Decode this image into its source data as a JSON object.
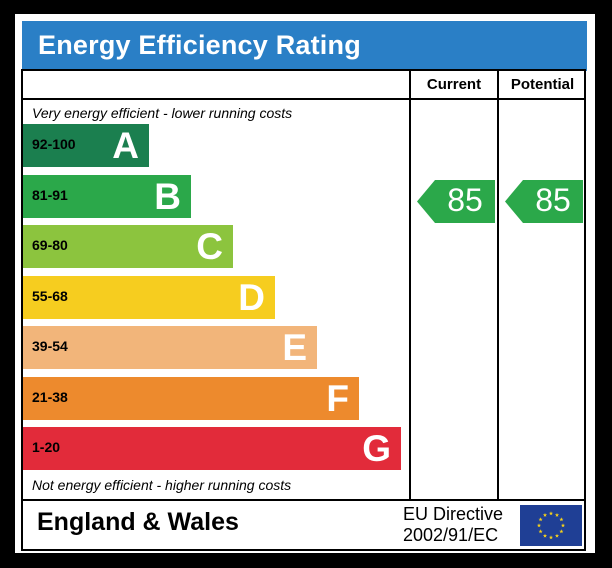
{
  "title": "Energy Efficiency Rating",
  "columns": {
    "current": "Current",
    "potential": "Potential"
  },
  "notes": {
    "top": "Very energy efficient - lower running costs",
    "bottom": "Not energy efficient - higher running costs"
  },
  "chart_data": {
    "type": "bar",
    "title": "Energy Efficiency Rating",
    "categories": [
      "A",
      "B",
      "C",
      "D",
      "E",
      "F",
      "G"
    ],
    "bands": [
      {
        "letter": "A",
        "range": "92-100",
        "color": "#1b7f4f"
      },
      {
        "letter": "B",
        "range": "81-91",
        "color": "#2ba84a"
      },
      {
        "letter": "C",
        "range": "69-80",
        "color": "#8cc43e"
      },
      {
        "letter": "D",
        "range": "55-68",
        "color": "#f6cd1f"
      },
      {
        "letter": "E",
        "range": "39-54",
        "color": "#f2b57a"
      },
      {
        "letter": "F",
        "range": "21-38",
        "color": "#ed8a2d"
      },
      {
        "letter": "G",
        "range": "1-20",
        "color": "#e22b3a"
      }
    ],
    "current_rating": 85,
    "potential_rating": 85,
    "rating_color": "#2ba84a"
  },
  "footer": {
    "region": "England & Wales",
    "directive_line1": "EU Directive",
    "directive_line2": "2002/91/EC",
    "flag_color": "#1f3f95",
    "star_color": "#f7d21a"
  }
}
